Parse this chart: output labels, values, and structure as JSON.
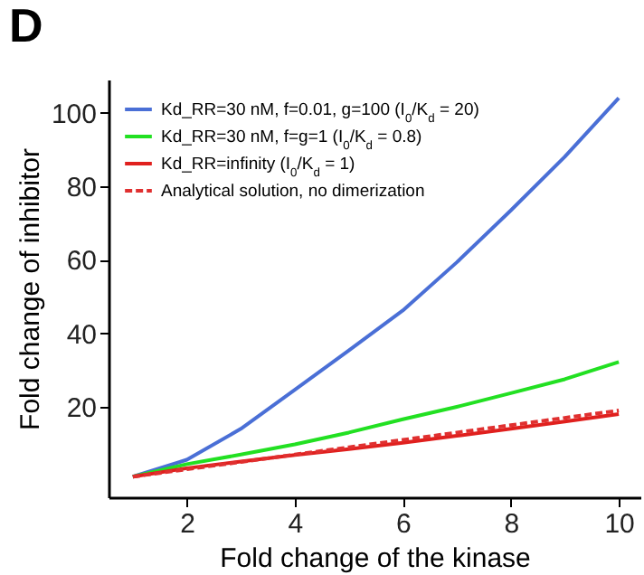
{
  "chart_data": {
    "type": "line",
    "title": "D",
    "xlabel": "Fold change of the kinase",
    "ylabel": "Fold change of inhibitor",
    "x": [
      1,
      2,
      3,
      4,
      5,
      6,
      7,
      8,
      9,
      10
    ],
    "series": [
      {
        "name": "Kd_RR=30 nM, f=0.01, g=100 (I$_{0}$/K$_{d}$ = 20)",
        "color": "#4a6fd6",
        "values": [
          1,
          5.6,
          14,
          24.6,
          35.3,
          46.2,
          59.3,
          73.4,
          88,
          104
        ]
      },
      {
        "name": "Kd_RR=30 nM, f=g=1 (I$_{0}$/K$_{d}$ = 0.8)",
        "color": "#22e022",
        "values": [
          1,
          4.4,
          7,
          9.8,
          13,
          16.6,
          20,
          23.7,
          27.5,
          32.2
        ]
      },
      {
        "name": "Kd_RR=infinity (I$_{0}$/K$_{d}$ = 1)",
        "color": "#e0201e",
        "values": [
          1,
          3.3,
          5.1,
          6.9,
          8.5,
          10.2,
          12.1,
          14,
          16,
          18
        ]
      },
      {
        "name": "Analytical solution, no dimerization",
        "color": "#e03030",
        "line_style": "dashed",
        "values": [
          1,
          3,
          5,
          7,
          9,
          11,
          13,
          15,
          17,
          19
        ]
      }
    ],
    "xlim": [
      0.55,
      10.4
    ],
    "ylim": [
      -4.6,
      109
    ],
    "xticks": [
      2,
      4,
      6,
      8,
      10
    ],
    "yticks": [
      20,
      40,
      60,
      80,
      100
    ],
    "grid": false,
    "legend": "top left",
    "marker": "none"
  }
}
